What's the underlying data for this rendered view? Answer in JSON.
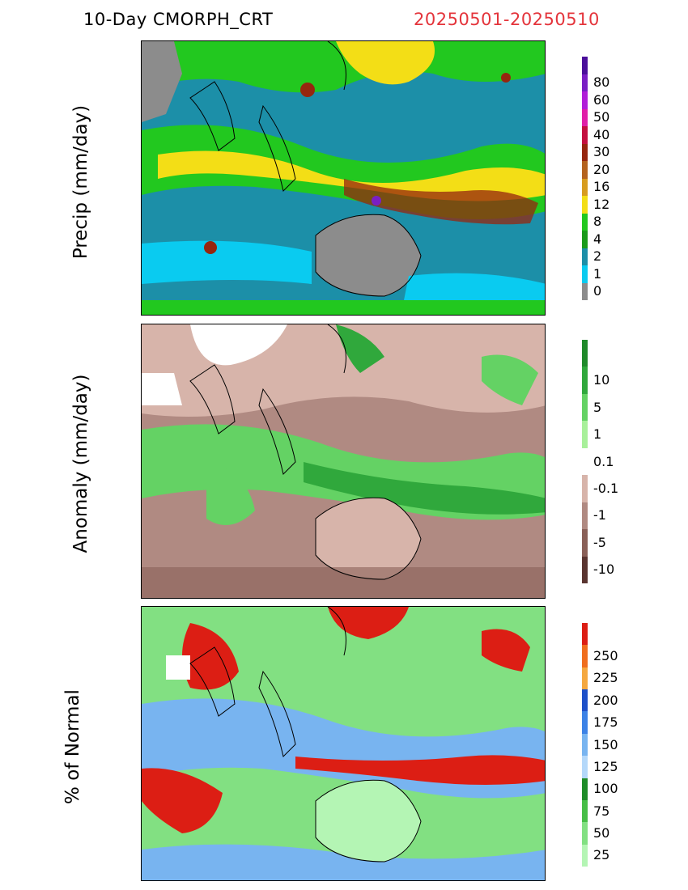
{
  "header": {
    "title": "10-Day CMORPH_CRT",
    "date_range": "20250501-20250510",
    "date_color": "#e4343b"
  },
  "panels": [
    {
      "id": "precip",
      "ylabel": "Precip (mm/day)",
      "colorbar": [
        {
          "label": "",
          "color": "#4b0f9b"
        },
        {
          "label": "80",
          "color": "#7a1fc4"
        },
        {
          "label": "60",
          "color": "#b01fd8"
        },
        {
          "label": "50",
          "color": "#e01fa8"
        },
        {
          "label": "40",
          "color": "#c41040"
        },
        {
          "label": "30",
          "color": "#96260f"
        },
        {
          "label": "20",
          "color": "#b4631f"
        },
        {
          "label": "16",
          "color": "#d79c1f"
        },
        {
          "label": "12",
          "color": "#f3de16"
        },
        {
          "label": "8",
          "color": "#22c81f"
        },
        {
          "label": "4",
          "color": "#1a9a1a"
        },
        {
          "label": "2",
          "color": "#1c8fa8"
        },
        {
          "label": "1",
          "color": "#0acbf0"
        },
        {
          "label": "0",
          "color": "#8c8c8c"
        }
      ]
    },
    {
      "id": "anomaly",
      "ylabel": "Anomaly (mm/day)",
      "colorbar": [
        {
          "label": "",
          "color": "#1f8a2a"
        },
        {
          "label": "10",
          "color": "#30a83c"
        },
        {
          "label": "5",
          "color": "#64d264"
        },
        {
          "label": "1",
          "color": "#a8f09a"
        },
        {
          "label": "0.1",
          "color": "#ffffff"
        },
        {
          "label": "-0.1",
          "color": "#d7b4aa"
        },
        {
          "label": "-1",
          "color": "#b08a82"
        },
        {
          "label": "-5",
          "color": "#8a6058"
        },
        {
          "label": "-10",
          "color": "#5a3430"
        }
      ]
    },
    {
      "id": "percent",
      "ylabel": "% of Normal",
      "colorbar": [
        {
          "label": "",
          "color": "#dc1e14"
        },
        {
          "label": "250",
          "color": "#f06e1e"
        },
        {
          "label": "225",
          "color": "#f5a840"
        },
        {
          "label": "200",
          "color": "#1e50c8"
        },
        {
          "label": "175",
          "color": "#3c82e6"
        },
        {
          "label": "150",
          "color": "#78b4f0"
        },
        {
          "label": "125",
          "color": "#b4d8fa"
        },
        {
          "label": "100",
          "color": "#1e8c28"
        },
        {
          "label": "75",
          "color": "#46be46"
        },
        {
          "label": "50",
          "color": "#82e082"
        },
        {
          "label": "25",
          "color": "#b4f5b4"
        }
      ]
    }
  ]
}
